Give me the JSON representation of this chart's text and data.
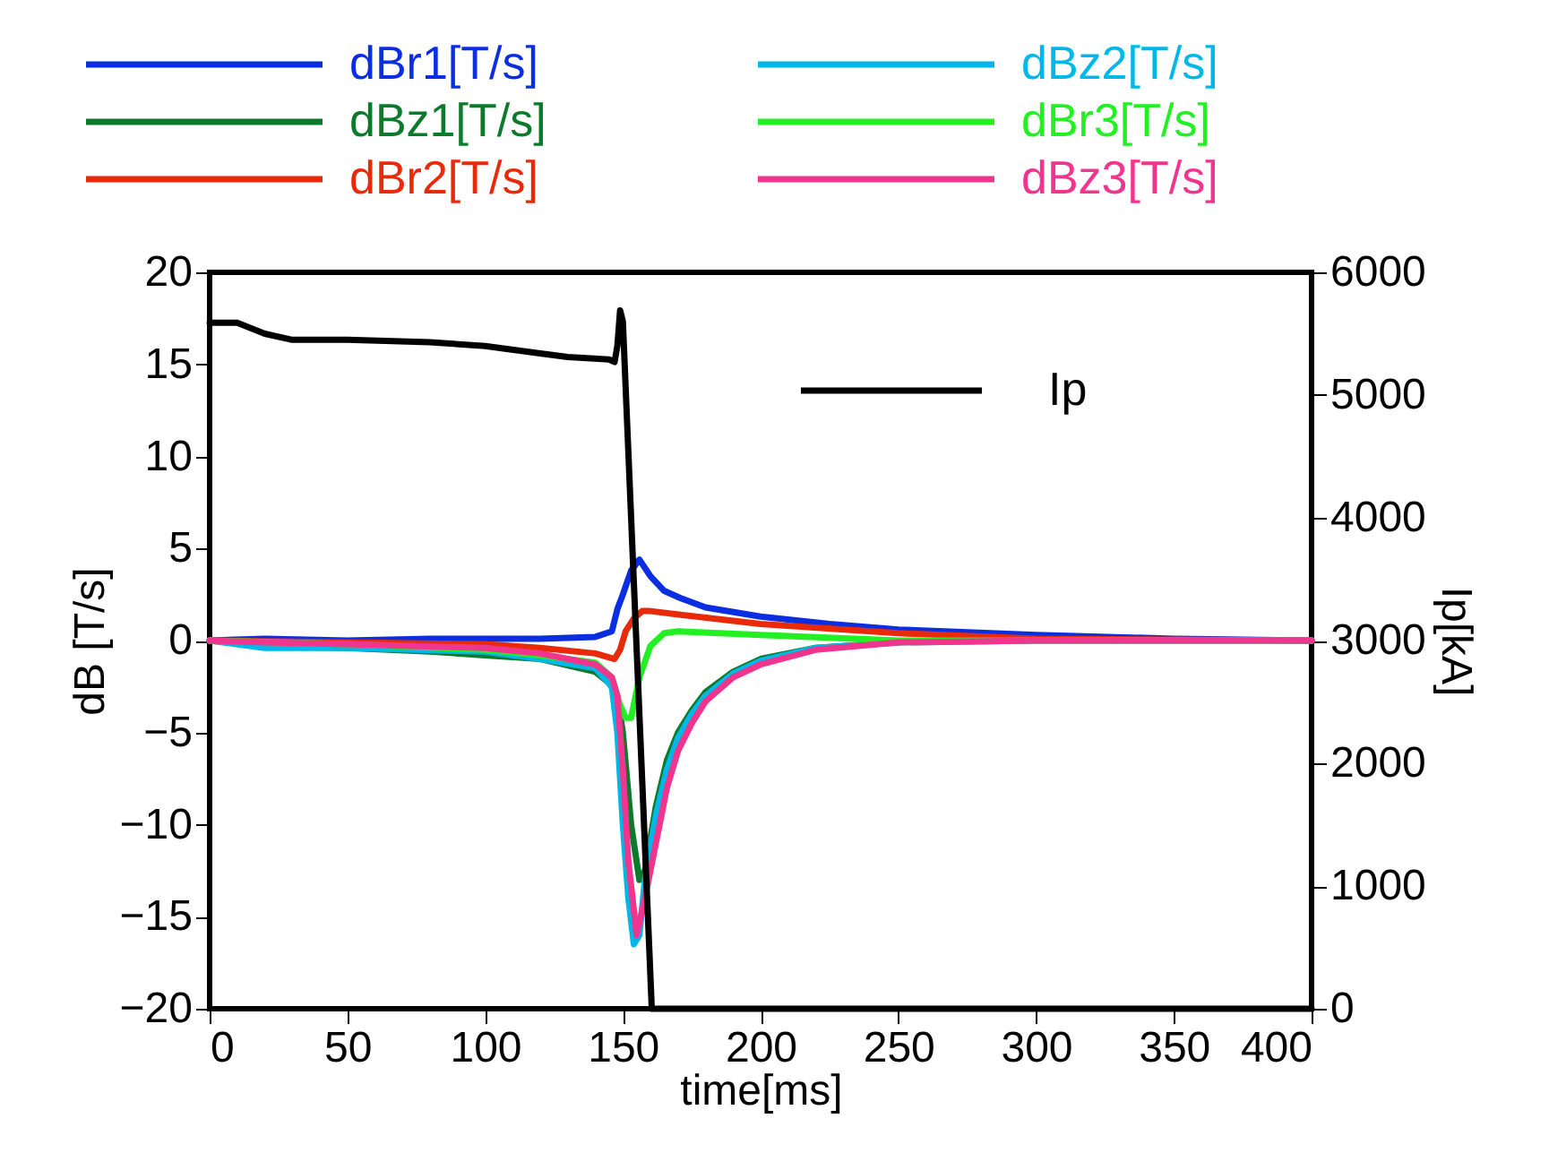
{
  "chart_data": {
    "type": "line",
    "xlabel": "time[ms]",
    "ylabel": "dB [T/s]",
    "y2label": "Ip[kA]",
    "legend": "top",
    "xlim": [
      0,
      400
    ],
    "xticks": [
      0,
      50,
      100,
      150,
      200,
      250,
      300,
      350,
      400
    ],
    "ylim": [
      -20,
      20
    ],
    "yticks": [
      -20,
      -15,
      -10,
      -5,
      0,
      5,
      10,
      15,
      20
    ],
    "y2lim": [
      0,
      6000
    ],
    "y2ticks": [
      0,
      1000,
      2000,
      3000,
      4000,
      5000,
      6000
    ],
    "series": [
      {
        "name": "dBr1[T/s]",
        "color": "#0a2ee0",
        "x": [
          0,
          20,
          50,
          80,
          100,
          120,
          140,
          146,
          148,
          150,
          153,
          156,
          160,
          165,
          171,
          180,
          200,
          225,
          250,
          300,
          350,
          400
        ],
        "values": [
          0,
          0.1,
          0,
          0.1,
          0.1,
          0.1,
          0.2,
          0.5,
          1.7,
          2.5,
          3.8,
          4.4,
          3.5,
          2.7,
          2.3,
          1.8,
          1.3,
          0.9,
          0.6,
          0.3,
          0.1,
          0
        ]
      },
      {
        "name": "dBz1[T/s]",
        "color": "#0b7a2a",
        "x": [
          0,
          20,
          50,
          80,
          100,
          120,
          140,
          145,
          148,
          150,
          153,
          156,
          158,
          162,
          166,
          170,
          175,
          180,
          190,
          200,
          220,
          250
        ],
        "values": [
          0,
          -0.3,
          -0.4,
          -0.6,
          -0.8,
          -1.0,
          -1.7,
          -2.3,
          -3,
          -5,
          -10,
          -13,
          -12.5,
          -9,
          -6.5,
          -5,
          -3.8,
          -2.8,
          -1.7,
          -1,
          -0.4,
          -0.1
        ]
      },
      {
        "name": "dBr2[T/s]",
        "color": "#e82a0a",
        "x": [
          0,
          50,
          100,
          120,
          140,
          147,
          149,
          151,
          154,
          157,
          160,
          171,
          200,
          250,
          300,
          400
        ],
        "values": [
          0,
          -0.1,
          -0.2,
          -0.4,
          -0.7,
          -1.0,
          -0.5,
          0.5,
          1.2,
          1.6,
          1.6,
          1.4,
          0.9,
          0.4,
          0.1,
          0
        ]
      },
      {
        "name": "dBz2[T/s]",
        "color": "#00b8e8",
        "x": [
          0,
          20,
          50,
          100,
          120,
          140,
          146,
          148,
          150,
          152,
          154,
          156,
          158,
          162,
          166,
          170,
          175,
          180,
          190,
          200,
          220,
          250,
          300,
          400
        ],
        "values": [
          0,
          -0.4,
          -0.4,
          -0.6,
          -1.0,
          -1.5,
          -2.5,
          -5,
          -10,
          -14,
          -16.5,
          -16,
          -13,
          -9.5,
          -7,
          -5.3,
          -4,
          -3,
          -1.8,
          -1.1,
          -0.4,
          -0.1,
          0,
          0
        ]
      },
      {
        "name": "dBr3[T/s]",
        "color": "#22f022",
        "x": [
          0,
          50,
          100,
          120,
          140,
          146,
          149,
          151,
          153,
          156,
          160,
          165,
          170,
          200,
          250,
          400
        ],
        "values": [
          0,
          -0.2,
          -0.5,
          -0.8,
          -1.2,
          -2,
          -3.5,
          -4.2,
          -4.2,
          -2,
          -0.3,
          0.4,
          0.5,
          0.3,
          0,
          0
        ]
      },
      {
        "name": "dBz3[T/s]",
        "color": "#f0358f",
        "x": [
          0,
          20,
          50,
          100,
          120,
          140,
          146,
          148,
          150,
          152,
          155,
          158,
          162,
          166,
          170,
          175,
          180,
          190,
          200,
          220,
          250,
          300,
          400
        ],
        "values": [
          0,
          -0.1,
          -0.2,
          -0.4,
          -0.7,
          -1.3,
          -2,
          -3,
          -7,
          -12,
          -16,
          -14,
          -11,
          -8,
          -6,
          -4.5,
          -3.3,
          -2,
          -1.3,
          -0.5,
          -0.1,
          0,
          0
        ]
      },
      {
        "name": "Ip",
        "color": "#000000",
        "axis": "y2",
        "x": [
          0,
          10,
          20,
          30,
          50,
          80,
          100,
          120,
          130,
          145,
          147,
          148,
          149,
          150,
          160.5,
          170,
          400
        ],
        "values": [
          5590,
          5590,
          5500,
          5450,
          5450,
          5430,
          5400,
          5340,
          5310,
          5290,
          5270,
          5400,
          5690,
          5600,
          0,
          0,
          0
        ]
      }
    ]
  }
}
